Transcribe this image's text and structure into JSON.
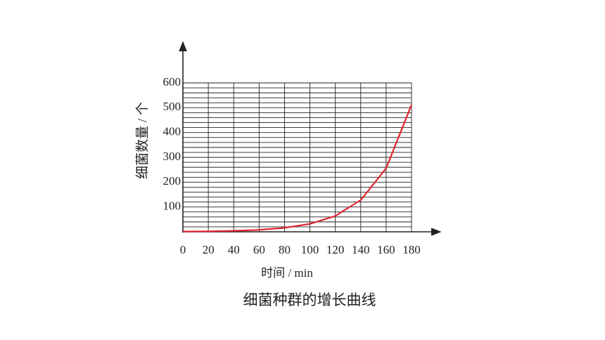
{
  "chart_data": {
    "type": "line",
    "title": "细菌种群的增长曲线",
    "x_label": "时间 / min",
    "y_label": "细菌数量 / 个",
    "x": [
      0,
      20,
      40,
      60,
      80,
      100,
      120,
      140,
      160,
      180
    ],
    "series": [
      {
        "name": "细菌数量",
        "color": "#e0252f",
        "values": [
          1,
          2,
          4,
          8,
          16,
          32,
          64,
          128,
          256,
          512
        ]
      }
    ],
    "xlim": [
      0,
      180
    ],
    "xticks": [
      0,
      20,
      40,
      60,
      80,
      100,
      120,
      140,
      160,
      180
    ],
    "ylim": [
      0,
      600
    ],
    "yticks": [
      100,
      200,
      300,
      400,
      500,
      600
    ],
    "ygrid": [
      0,
      20,
      40,
      60,
      80,
      100,
      120,
      140,
      160,
      180,
      200,
      220,
      240,
      260,
      280,
      300,
      320,
      340,
      360,
      380,
      400,
      420,
      440,
      460,
      480,
      500,
      520,
      540,
      560,
      580,
      600
    ],
    "grid": true
  }
}
